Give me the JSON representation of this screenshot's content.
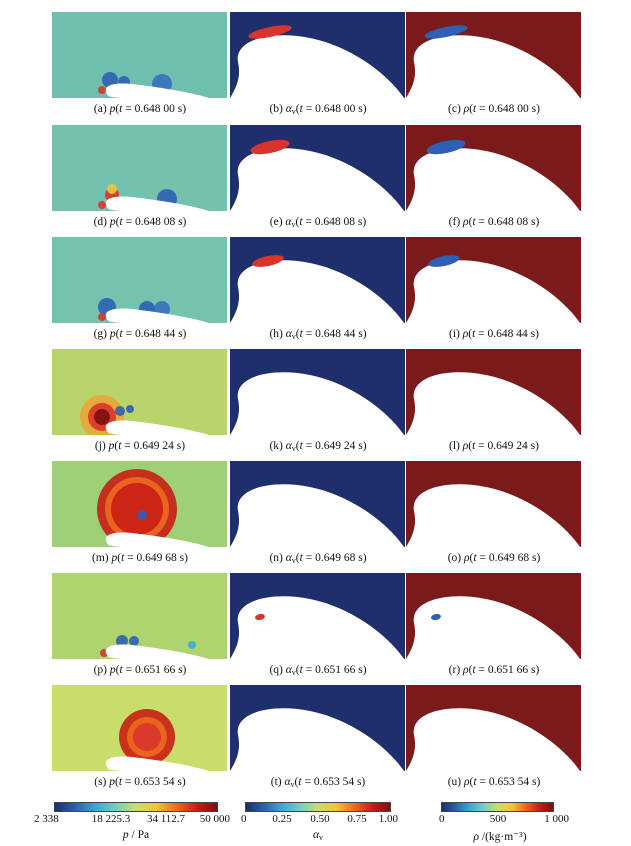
{
  "figure": {
    "rows": [
      {
        "p": {
          "letter": "(a)",
          "time": "0.648 00 s"
        },
        "av": {
          "letter": "(b)",
          "time": "0.648 00 s"
        },
        "rho": {
          "letter": "(c)",
          "time": "0.648 00 s"
        }
      },
      {
        "p": {
          "letter": "(d)",
          "time": "0.648 08 s"
        },
        "av": {
          "letter": "(e)",
          "time": "0.648 08 s"
        },
        "rho": {
          "letter": "(f)",
          "time": "0.648 08 s"
        }
      },
      {
        "p": {
          "letter": "(g)",
          "time": "0.648 44 s"
        },
        "av": {
          "letter": "(h)",
          "time": "0.648 44 s"
        },
        "rho": {
          "letter": "(i)",
          "time": "0.648 44 s"
        }
      },
      {
        "p": {
          "letter": "(j)",
          "time": "0.649 24 s"
        },
        "av": {
          "letter": "(k)",
          "time": "0.649 24 s"
        },
        "rho": {
          "letter": "(l)",
          "time": "0.649 24 s"
        }
      },
      {
        "p": {
          "letter": "(m)",
          "time": "0.649 68 s"
        },
        "av": {
          "letter": "(n)",
          "time": "0.649 68 s"
        },
        "rho": {
          "letter": "(o)",
          "time": "0.649 68 s"
        }
      },
      {
        "p": {
          "letter": "(p)",
          "time": "0.651 66 s"
        },
        "av": {
          "letter": "(q)",
          "time": "0.651 66 s"
        },
        "rho": {
          "letter": "(r)",
          "time": "0.651 66 s"
        }
      },
      {
        "p": {
          "letter": "(s)",
          "time": "0.653 54 s"
        },
        "av": {
          "letter": "(t)",
          "time": "0.653 54 s"
        },
        "rho": {
          "letter": "(u)",
          "time": "0.653 54 s"
        }
      }
    ],
    "caption_parts": {
      "t_symbol": "t",
      "equals": " = ",
      "p_symbol": "p",
      "rho_symbol": "ρ",
      "alpha_symbol": "α",
      "alpha_sub": "v"
    },
    "colorbars": {
      "pressure": {
        "ticks": [
          "2 338",
          "18 225.3",
          "34 112.7",
          "50 000"
        ],
        "label_symbol": "p",
        "label_unit": " / Pa"
      },
      "vapor_fraction": {
        "ticks": [
          "0",
          "0.25",
          "0.50",
          "0.75",
          "1.00"
        ],
        "label_symbol": "α",
        "label_sub": "v"
      },
      "density": {
        "ticks": [
          "0",
          "500",
          "1 000"
        ],
        "label_symbol": "ρ",
        "label_unit": " /(kg·m⁻³)"
      }
    },
    "colors": {
      "low": "#1f2f6e",
      "mid": "#5fbfb0",
      "high": "#7a1a1a",
      "white": "#ffffff"
    }
  }
}
